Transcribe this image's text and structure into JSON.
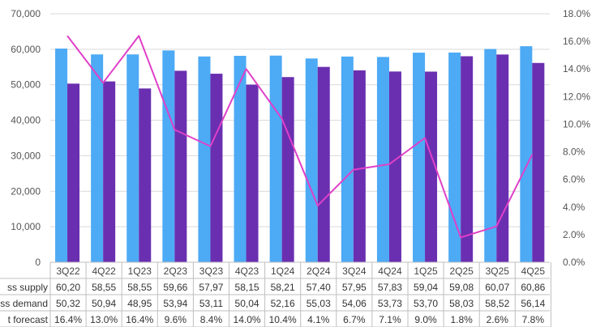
{
  "chart_data": {
    "type": "bar",
    "categories": [
      "3Q22",
      "4Q22",
      "1Q23",
      "2Q23",
      "3Q23",
      "4Q23",
      "1Q24",
      "2Q24",
      "3Q24",
      "4Q24",
      "1Q25",
      "2Q25",
      "3Q25",
      "4Q25"
    ],
    "series": [
      {
        "name": "ss supply",
        "kind": "bar",
        "color": "#4DAAF5",
        "axis": "left",
        "values": [
          60200,
          58550,
          58550,
          59660,
          57970,
          58150,
          58210,
          57400,
          57950,
          57830,
          59040,
          59080,
          60070,
          60860
        ],
        "table_values": [
          "60,20",
          "58,55",
          "58,55",
          "59,66",
          "57,97",
          "58,15",
          "58,21",
          "57,40",
          "57,95",
          "57,83",
          "59,04",
          "59,08",
          "60,07",
          "60,86"
        ]
      },
      {
        "name": "ss demand",
        "kind": "bar",
        "color": "#6A2FB0",
        "axis": "left",
        "values": [
          50320,
          50940,
          48950,
          53940,
          53110,
          50040,
          52160,
          55030,
          54060,
          53730,
          53700,
          58030,
          58520,
          56140
        ],
        "table_values": [
          "50,32",
          "50,94",
          "48,95",
          "53,94",
          "53,11",
          "50,04",
          "52,16",
          "55,03",
          "54,06",
          "53,73",
          "53,70",
          "58,03",
          "58,52",
          "56,14"
        ]
      },
      {
        "name": "t forecast",
        "kind": "line",
        "color": "#E040C8",
        "axis": "right",
        "values": [
          16.4,
          13.0,
          16.4,
          9.6,
          8.4,
          14.0,
          10.4,
          4.1,
          6.7,
          7.1,
          9.0,
          1.8,
          2.6,
          7.8
        ],
        "table_values": [
          "16.4%",
          "13.0%",
          "16.4%",
          "9.6%",
          "8.4%",
          "14.0%",
          "10.4%",
          "4.1%",
          "6.7%",
          "7.1%",
          "9.0%",
          "1.8%",
          "2.6%",
          "7.8%"
        ]
      }
    ],
    "y_left": {
      "min": 0,
      "max": 70000,
      "ticks": [
        "0",
        "10,000",
        "20,000",
        "30,000",
        "40,000",
        "50,000",
        "60,000",
        "70,000"
      ]
    },
    "y_right": {
      "min": 0,
      "max": 18,
      "ticks": [
        "0.0%",
        "2.0%",
        "4.0%",
        "6.0%",
        "8.0%",
        "10.0%",
        "12.0%",
        "14.0%",
        "16.0%",
        "18.0%"
      ]
    },
    "grid": true,
    "legend": "data-table"
  }
}
